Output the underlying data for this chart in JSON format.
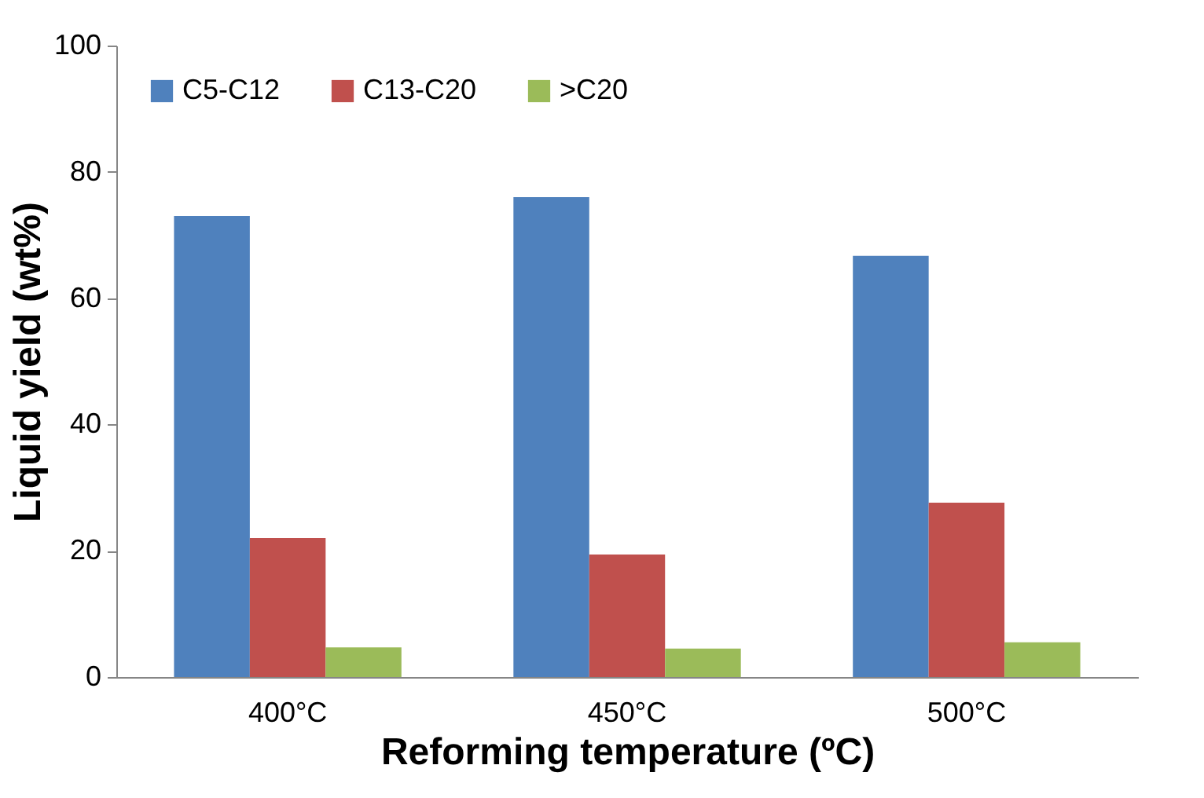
{
  "chart_data": {
    "type": "bar",
    "xlabel": "Reforming temperature (ºC)",
    "ylabel": "Liquid yield (wt%)",
    "categories": [
      "400°C",
      "450°C",
      "500°C"
    ],
    "series": [
      {
        "name": "C5-C12",
        "color": "#4f81bd",
        "values": [
          73,
          76,
          66.7
        ]
      },
      {
        "name": "C13-C20",
        "color": "#c0504d",
        "values": [
          22,
          19.4,
          27.6
        ]
      },
      {
        "name": ">C20",
        "color": "#9bbb59",
        "values": [
          4.7,
          4.5,
          5.5
        ]
      }
    ],
    "ylim": [
      0,
      100
    ],
    "yticks": [
      0,
      20,
      40,
      60,
      80,
      100
    ],
    "grid": false,
    "legend": "top left"
  }
}
